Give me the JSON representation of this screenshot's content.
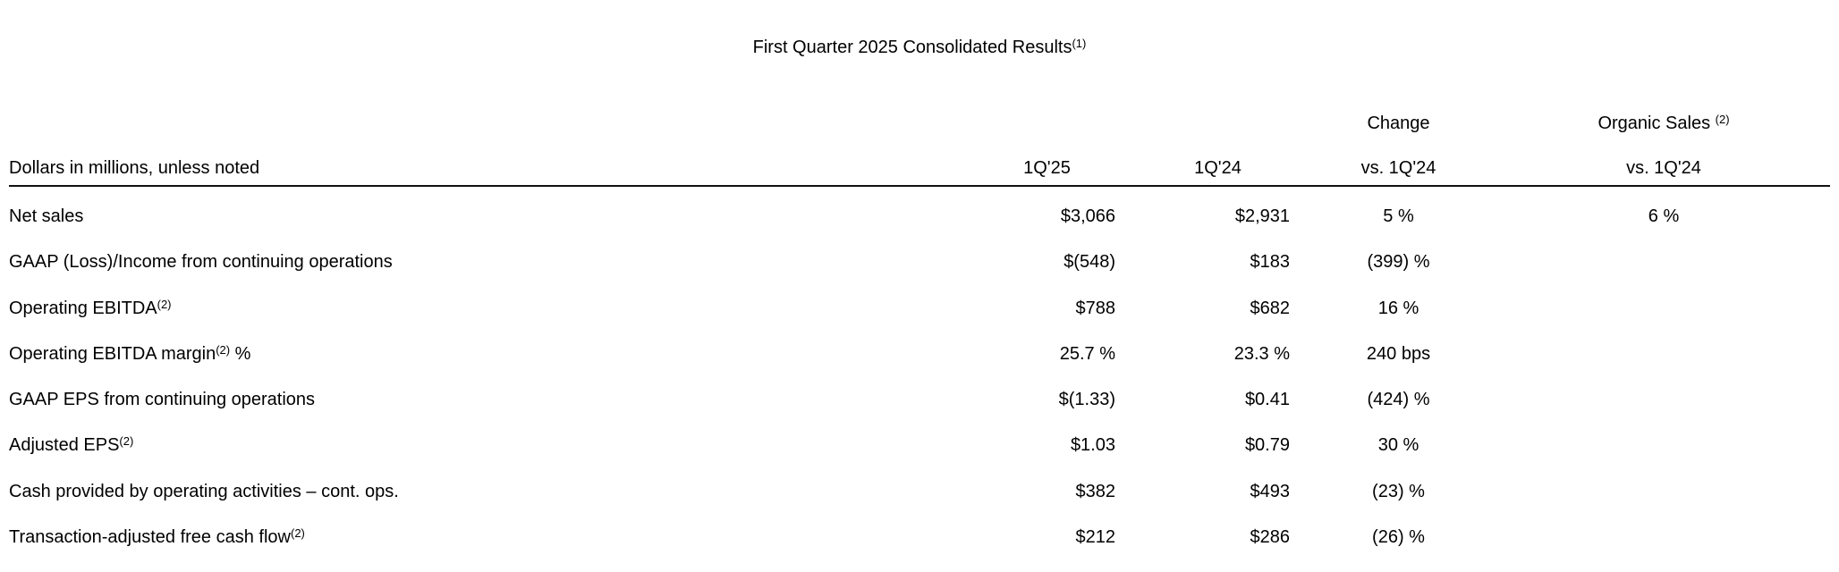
{
  "title": {
    "text": "First Quarter 2025 Consolidated Results",
    "sup": "(1)"
  },
  "table": {
    "header": {
      "group_change": "Change",
      "group_organic_text": "Organic Sales ",
      "group_organic_sup": "(2)",
      "col_label": "Dollars in millions, unless noted",
      "col_q125": "1Q'25",
      "col_q124": "1Q'24",
      "col_change_sub": "vs. 1Q'24",
      "col_organic_sub": "vs. 1Q'24"
    },
    "rows": [
      {
        "label": "Net sales",
        "sup": "",
        "post": "",
        "q125": "$3,066",
        "q124": "$2,931",
        "change": "5 %",
        "organic": "6 %"
      },
      {
        "label": "GAAP (Loss)/Income from continuing operations",
        "sup": "",
        "post": "",
        "q125": "$(548)",
        "q124": "$183",
        "change": "(399) %",
        "organic": ""
      },
      {
        "label": "Operating EBITDA",
        "sup": "(2)",
        "post": "",
        "q125": "$788",
        "q124": "$682",
        "change": "16 %",
        "organic": ""
      },
      {
        "label": "Operating EBITDA margin",
        "sup": "(2)",
        "post": " %",
        "q125": "25.7 %",
        "q124": "23.3 %",
        "change": "240 bps",
        "organic": ""
      },
      {
        "label": "GAAP EPS from continuing operations",
        "sup": "",
        "post": "",
        "q125": "$(1.33)",
        "q124": "$0.41",
        "change": "(424) %",
        "organic": ""
      },
      {
        "label": "Adjusted EPS",
        "sup": "(2)",
        "post": "",
        "q125": "$1.03",
        "q124": "$0.79",
        "change": "30 %",
        "organic": ""
      },
      {
        "label": "Cash provided by operating activities – cont. ops.",
        "sup": "",
        "post": "",
        "q125": "$382",
        "q124": "$493",
        "change": "(23) %",
        "organic": ""
      },
      {
        "label": "Transaction-adjusted free cash flow",
        "sup": "(2)",
        "post": "",
        "q125": "$212",
        "q124": "$286",
        "change": "(26) %",
        "organic": ""
      }
    ]
  }
}
